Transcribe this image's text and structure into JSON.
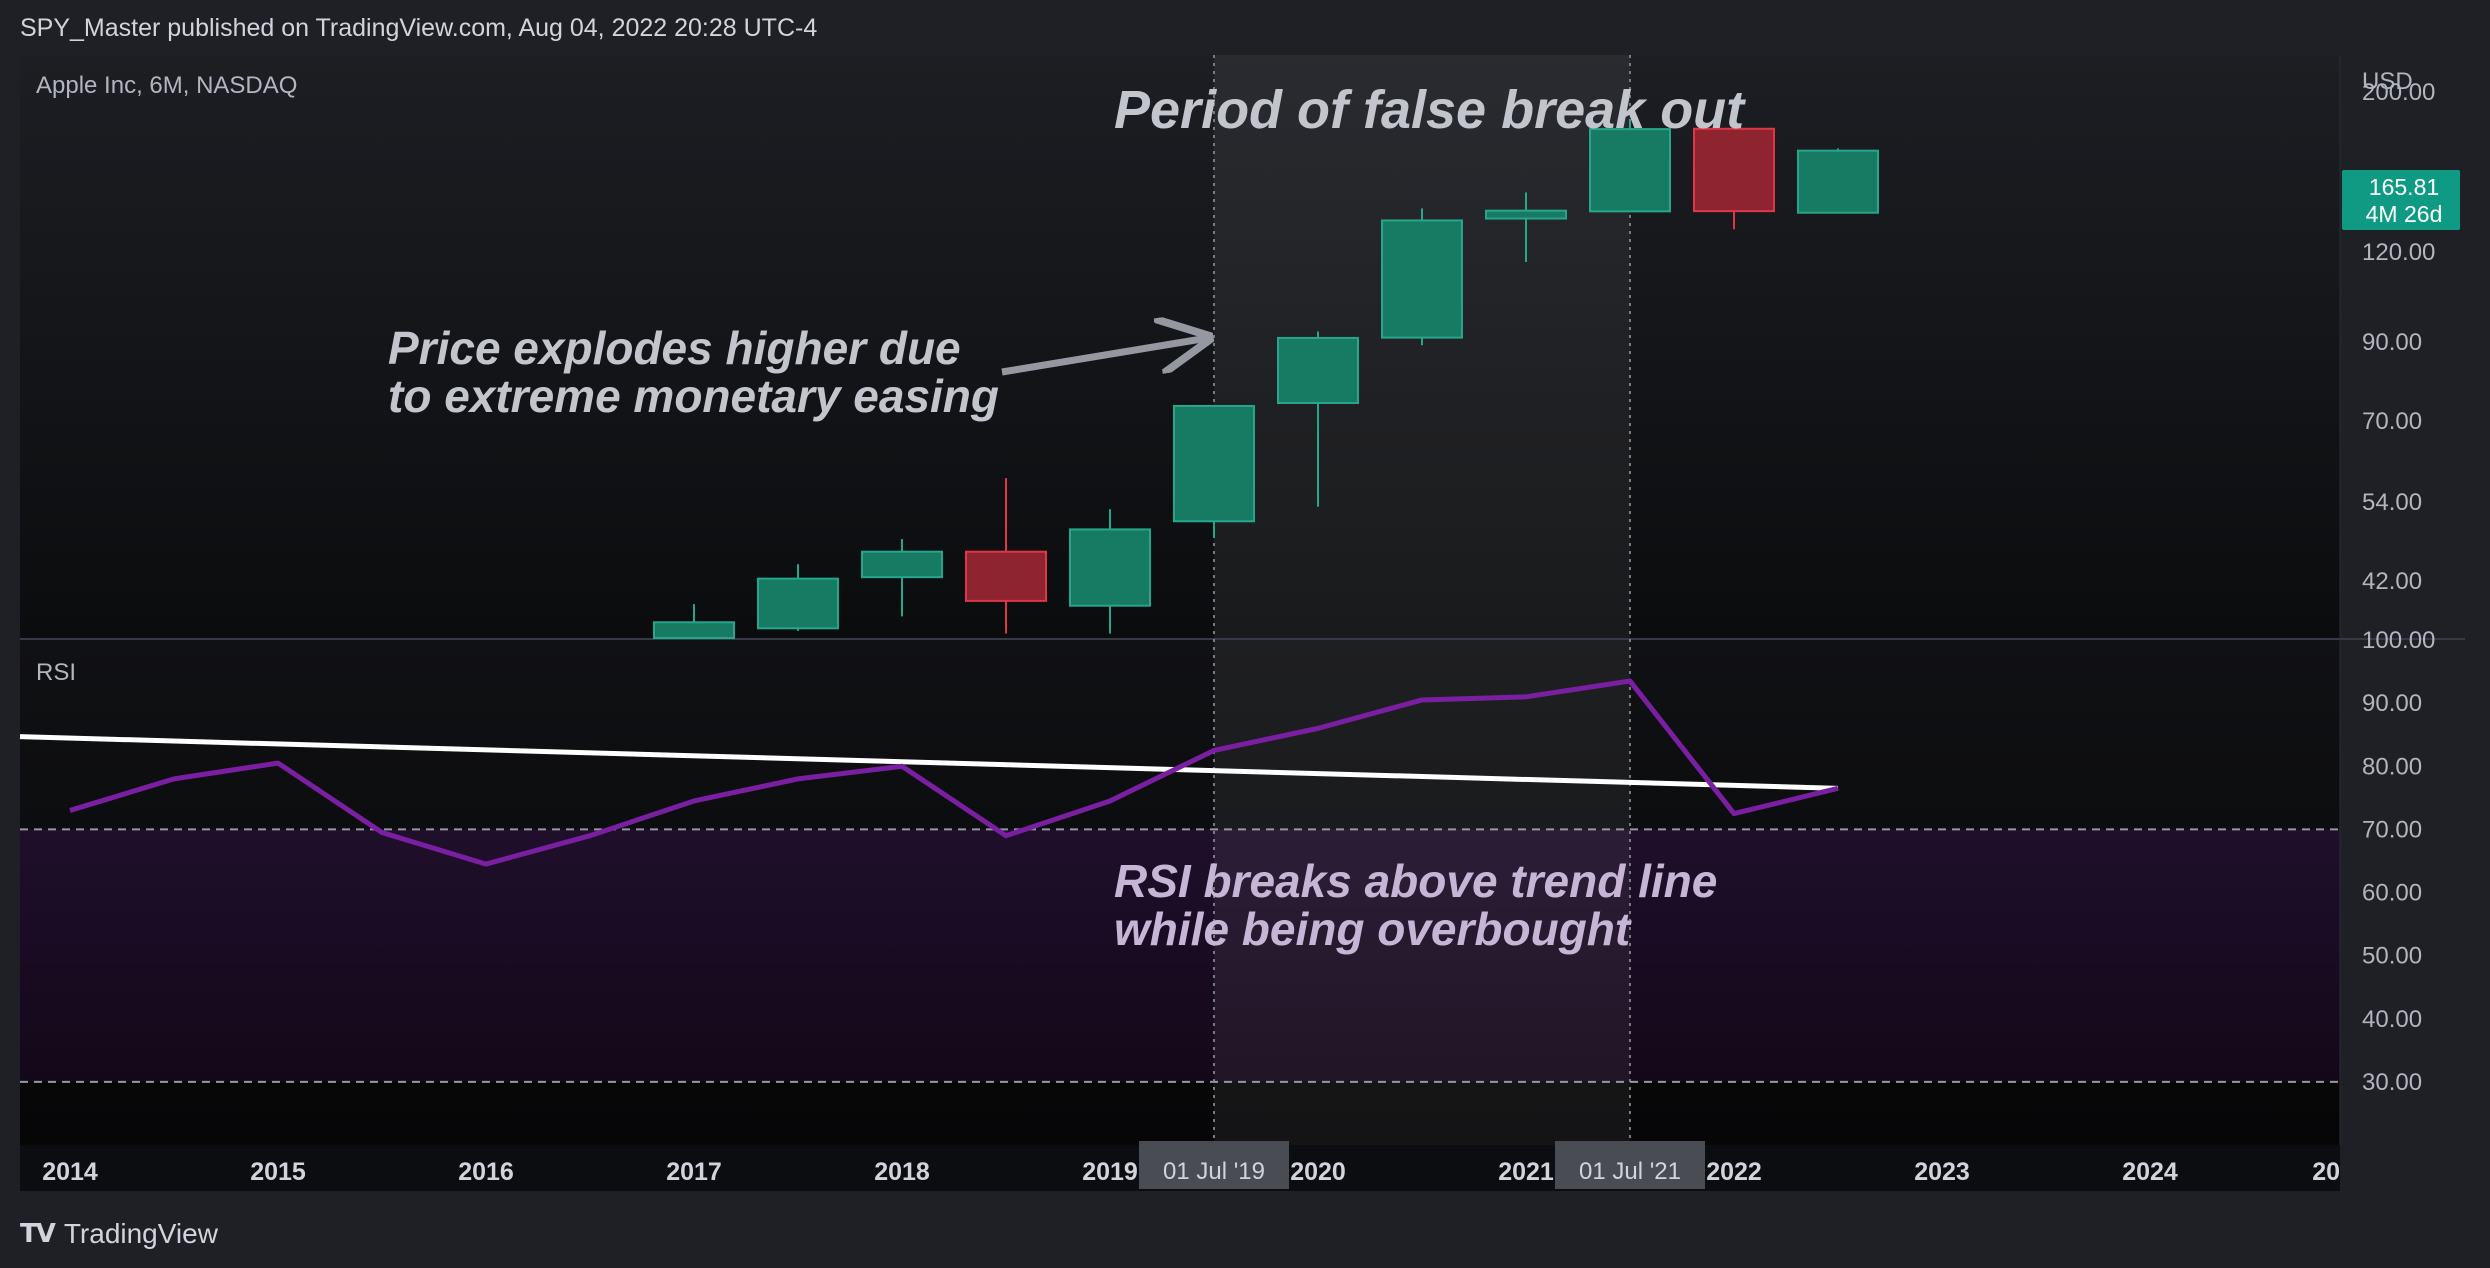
{
  "header": {
    "publisher_line": "SPY_Master published on TradingView.com, Aug 04, 2022 20:28 UTC-4"
  },
  "footer": {
    "brand": "TradingView",
    "logo_icon": "tradingview-logo-icon"
  },
  "colors": {
    "up": "#177a63",
    "up_border": "#26a68a",
    "down": "#8f2431",
    "down_border": "#e0364a",
    "rsi_line": "#7b1fa2",
    "trend_line": "#ffffff",
    "price_badge": "#0f9a84"
  },
  "chart_data": [
    {
      "type": "candlestick",
      "title": "Apple Inc, 6M, NASDAQ",
      "currency": "USD",
      "scale": "log",
      "ylim": [
        35,
        225
      ],
      "y_ticks": [
        "200.00",
        "120.00",
        "90.00",
        "70.00",
        "54.00",
        "42.00"
      ],
      "y_tick_values": [
        200,
        120,
        90,
        70,
        54,
        42
      ],
      "last_price": "165.81",
      "countdown": "4M 26d",
      "candles": [
        {
          "t": "2017-01-01",
          "o": 28.9,
          "h": 39.0,
          "l": 28.7,
          "c": 36.8
        },
        {
          "t": "2017-07-01",
          "o": 36.1,
          "h": 44.3,
          "l": 35.8,
          "c": 42.3
        },
        {
          "t": "2018-01-01",
          "o": 42.5,
          "h": 48.0,
          "l": 37.5,
          "c": 46.1
        },
        {
          "t": "2018-07-01",
          "o": 46.1,
          "h": 58.3,
          "l": 35.5,
          "c": 39.4
        },
        {
          "t": "2019-01-01",
          "o": 38.8,
          "h": 52.8,
          "l": 35.5,
          "c": 49.5
        },
        {
          "t": "2019-07-01",
          "o": 50.8,
          "h": 73.5,
          "l": 48.2,
          "c": 73.4
        },
        {
          "t": "2020-01-01",
          "o": 74.1,
          "h": 93.1,
          "l": 53.2,
          "c": 91.2
        },
        {
          "t": "2020-07-01",
          "o": 91.3,
          "h": 137.9,
          "l": 89.1,
          "c": 132.7
        },
        {
          "t": "2021-01-01",
          "o": 133.5,
          "h": 145.1,
          "l": 116.2,
          "c": 136.9
        },
        {
          "t": "2021-07-01",
          "o": 136.6,
          "h": 182.9,
          "l": 136.6,
          "c": 177.6
        },
        {
          "t": "2022-01-01",
          "o": 177.8,
          "h": 182.9,
          "l": 129.0,
          "c": 136.7
        },
        {
          "t": "2022-07-01",
          "o": 136.0,
          "h": 167.0,
          "l": 136.0,
          "c": 165.8
        }
      ]
    },
    {
      "type": "line",
      "title": "RSI",
      "ylim": [
        20,
        100
      ],
      "y_ticks": [
        "100.00",
        "90.00",
        "80.00",
        "70.00",
        "60.00",
        "50.00",
        "40.00",
        "30.00"
      ],
      "y_tick_values": [
        100,
        90,
        80,
        70,
        60,
        50,
        40,
        30
      ],
      "overbought": 70,
      "oversold": 30,
      "x": [
        "2014-01-01",
        "2014-07-01",
        "2015-01-01",
        "2015-07-01",
        "2016-01-01",
        "2016-07-01",
        "2017-01-01",
        "2017-07-01",
        "2018-01-01",
        "2018-07-01",
        "2019-01-01",
        "2019-07-01",
        "2020-01-01",
        "2020-07-01",
        "2021-01-01",
        "2021-07-01",
        "2022-01-01",
        "2022-07-01"
      ],
      "values": [
        73,
        78,
        80.5,
        69.5,
        64.5,
        69,
        74.5,
        78,
        80,
        69,
        74.5,
        82.5,
        86,
        90.5,
        91,
        93.5,
        72.5,
        76.5
      ],
      "trend_line": {
        "start": {
          "x": "2013-10-01",
          "y": 84.7
        },
        "end": {
          "x": "2022-07-01",
          "y": 76.5
        }
      }
    }
  ],
  "x_axis": {
    "labels": [
      "2014",
      "2015",
      "2016",
      "2017",
      "2018",
      "2019",
      "2020",
      "2021",
      "2022",
      "2023",
      "2024",
      "20"
    ],
    "label_dates": [
      "2014-01-01",
      "2015-01-01",
      "2016-01-01",
      "2017-01-01",
      "2018-01-01",
      "2019-01-01",
      "2020-01-01",
      "2021-01-01",
      "2022-01-01",
      "2023-01-01",
      "2024-01-01",
      "2025-01-01"
    ],
    "markers": [
      {
        "label": "01 Jul '19",
        "date": "2019-07-01"
      },
      {
        "label": "01 Jul '21",
        "date": "2021-07-01"
      }
    ]
  },
  "highlight_range": {
    "start": "2019-07-01",
    "end": "2021-07-01"
  },
  "annotations": {
    "period_title": "Period of false break out",
    "price_note_line1": "Price explodes higher due",
    "price_note_line2": "to extreme monetary easing",
    "rsi_note_line1": "RSI breaks above trend line",
    "rsi_note_line2": "while being overbought"
  }
}
